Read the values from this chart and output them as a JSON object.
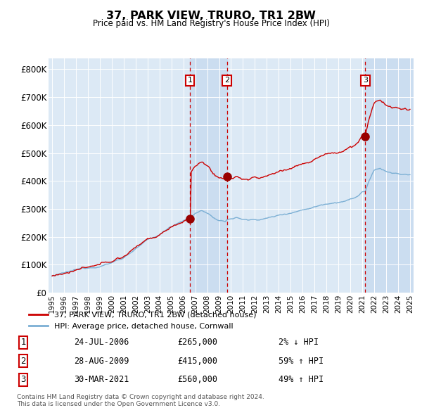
{
  "title": "37, PARK VIEW, TRURO, TR1 2BW",
  "subtitle": "Price paid vs. HM Land Registry's House Price Index (HPI)",
  "ylim": [
    0,
    840000
  ],
  "yticks": [
    0,
    100000,
    200000,
    300000,
    400000,
    500000,
    600000,
    700000,
    800000
  ],
  "ytick_labels": [
    "£0",
    "£100K",
    "£200K",
    "£300K",
    "£400K",
    "£500K",
    "£600K",
    "£700K",
    "£800K"
  ],
  "plot_bg_color": "#dce9f5",
  "line_color_property": "#cc0000",
  "line_color_hpi": "#7bafd4",
  "marker_color": "#990000",
  "vline_color": "#cc0000",
  "shade_color": "#c5d9ee",
  "transaction_dates": [
    2006.56,
    2009.66,
    2021.25
  ],
  "transaction_prices": [
    265000,
    415000,
    560000
  ],
  "transaction_labels": [
    "1",
    "2",
    "3"
  ],
  "legend_label_property": "37, PARK VIEW, TRURO, TR1 2BW (detached house)",
  "legend_label_hpi": "HPI: Average price, detached house, Cornwall",
  "table_rows": [
    [
      "1",
      "24-JUL-2006",
      "£265,000",
      "2% ↓ HPI"
    ],
    [
      "2",
      "28-AUG-2009",
      "£415,000",
      "59% ↑ HPI"
    ],
    [
      "3",
      "30-MAR-2021",
      "£560,000",
      "49% ↑ HPI"
    ]
  ],
  "footnote": "Contains HM Land Registry data © Crown copyright and database right 2024.\nThis data is licensed under the Open Government Licence v3.0.",
  "start_year": 1995,
  "end_year": 2025
}
